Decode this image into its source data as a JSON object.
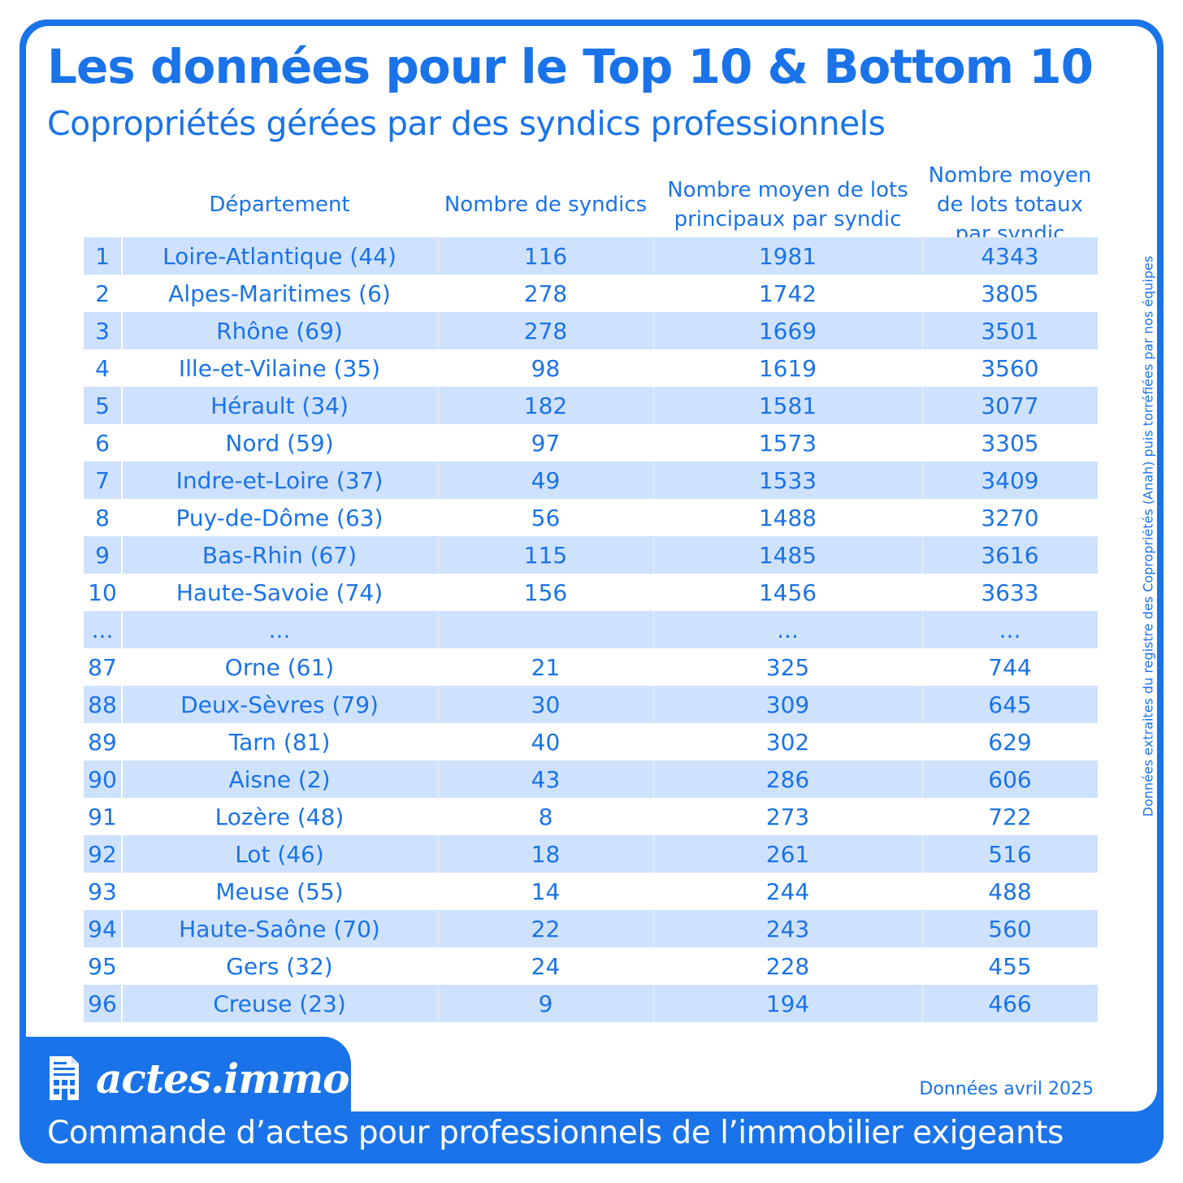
{
  "title": "Les données pour le Top 10 & Bottom 10",
  "subtitle": "Copropriétés gérées par des syndics professionnels",
  "side_note": "Données extraites du registre des Copropriétés (Anah) puis torréfiées par nos équipes",
  "table": {
    "headers": {
      "departement": "Département",
      "syndics": "Nombre de syndics",
      "lots_principaux": "Nombre moyen de lots principaux par syndic",
      "lots_totaux": "Nombre moyen de lots totaux par syndic"
    },
    "rows": [
      {
        "rank": "1",
        "dept": "Loire-Atlantique (44)",
        "syndics": "116",
        "principaux": "1981",
        "totaux": "4343"
      },
      {
        "rank": "2",
        "dept": "Alpes-Maritimes (6)",
        "syndics": "278",
        "principaux": "1742",
        "totaux": "3805"
      },
      {
        "rank": "3",
        "dept": "Rhône (69)",
        "syndics": "278",
        "principaux": "1669",
        "totaux": "3501"
      },
      {
        "rank": "4",
        "dept": "Ille-et-Vilaine (35)",
        "syndics": "98",
        "principaux": "1619",
        "totaux": "3560"
      },
      {
        "rank": "5",
        "dept": "Hérault (34)",
        "syndics": "182",
        "principaux": "1581",
        "totaux": "3077"
      },
      {
        "rank": "6",
        "dept": "Nord (59)",
        "syndics": "97",
        "principaux": "1573",
        "totaux": "3305"
      },
      {
        "rank": "7",
        "dept": "Indre-et-Loire (37)",
        "syndics": "49",
        "principaux": "1533",
        "totaux": "3409"
      },
      {
        "rank": "8",
        "dept": "Puy-de-Dôme (63)",
        "syndics": "56",
        "principaux": "1488",
        "totaux": "3270"
      },
      {
        "rank": "9",
        "dept": "Bas-Rhin (67)",
        "syndics": "115",
        "principaux": "1485",
        "totaux": "3616"
      },
      {
        "rank": "10",
        "dept": "Haute-Savoie (74)",
        "syndics": "156",
        "principaux": "1456",
        "totaux": "3633"
      },
      {
        "rank": "...",
        "dept": "...",
        "syndics": "",
        "principaux": "...",
        "totaux": "..."
      },
      {
        "rank": "87",
        "dept": "Orne (61)",
        "syndics": "21",
        "principaux": "325",
        "totaux": "744"
      },
      {
        "rank": "88",
        "dept": "Deux-Sèvres (79)",
        "syndics": "30",
        "principaux": "309",
        "totaux": "645"
      },
      {
        "rank": "89",
        "dept": "Tarn (81)",
        "syndics": "40",
        "principaux": "302",
        "totaux": "629"
      },
      {
        "rank": "90",
        "dept": "Aisne (2)",
        "syndics": "43",
        "principaux": "286",
        "totaux": "606"
      },
      {
        "rank": "91",
        "dept": "Lozère (48)",
        "syndics": "8",
        "principaux": "273",
        "totaux": "722"
      },
      {
        "rank": "92",
        "dept": "Lot (46)",
        "syndics": "18",
        "principaux": "261",
        "totaux": "516"
      },
      {
        "rank": "93",
        "dept": "Meuse (55)",
        "syndics": "14",
        "principaux": "244",
        "totaux": "488"
      },
      {
        "rank": "94",
        "dept": "Haute-Saône (70)",
        "syndics": "22",
        "principaux": "243",
        "totaux": "560"
      },
      {
        "rank": "95",
        "dept": "Gers (32)",
        "syndics": "24",
        "principaux": "228",
        "totaux": "455"
      },
      {
        "rank": "96",
        "dept": "Creuse (23)",
        "syndics": "9",
        "principaux": "194",
        "totaux": "466"
      }
    ]
  },
  "footer": {
    "brand_name": "actes.immo",
    "brand_icon": "building-document-icon",
    "data_date": "Données avril 2025",
    "tagline": "Commande d’actes pour professionnels de l’immobilier exigeants"
  },
  "colors": {
    "brand_blue": "#1a73e8",
    "stripe": "#cfe2fd",
    "background": "#ffffff"
  }
}
